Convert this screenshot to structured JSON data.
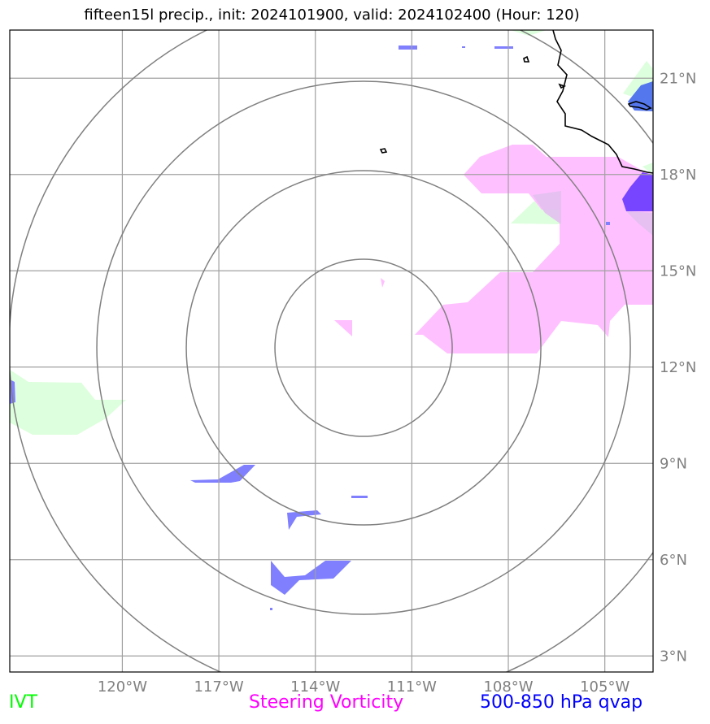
{
  "title": "fifteen15l precip., init: 2024101900, valid: 2024102400 (Hour: 120)",
  "map": {
    "lon_range": [
      -123.5,
      -103.5
    ],
    "lat_range": [
      2.5,
      22.5
    ],
    "lon_ticks": [
      -120,
      -117,
      -114,
      -111,
      -108,
      -105
    ],
    "lon_labels": [
      "120°W",
      "117°W",
      "114°W",
      "111°W",
      "108°W",
      "105°W"
    ],
    "lat_ticks": [
      3,
      6,
      9,
      12,
      15,
      18,
      21
    ],
    "lat_labels": [
      "3°N",
      "6°N",
      "9°N",
      "12°N",
      "15°N",
      "18°N",
      "21°N"
    ],
    "gridlines": true,
    "range_rings_center": [
      -112.5,
      12.6
    ],
    "ring_colors": "#808080",
    "grid_color": "#a0a0a0"
  },
  "legend": {
    "ivt": {
      "label": "IVT",
      "color": "#00ff00"
    },
    "vorticity": {
      "label": "Steering Vorticity",
      "color": "#ff00ff"
    },
    "qvap": {
      "label": "500-850 hPa qvap",
      "color": "#0000ff"
    }
  },
  "colors": {
    "ivt_fill": "#ddffdd",
    "vorticity_fill": "#ffc0ff",
    "qvap_fill": "#8080ff",
    "qvap_strong": "#7744ff"
  }
}
